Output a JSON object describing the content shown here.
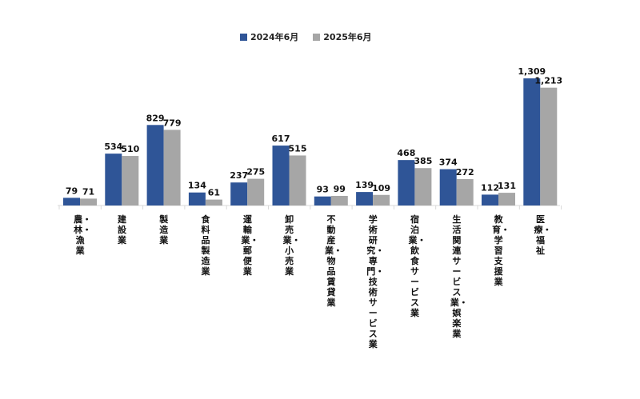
{
  "colors": {
    "series_2024": "#2F5597",
    "series_2025": "#A6A6A6",
    "axis": "#D9D9D9"
  },
  "chart_data": {
    "type": "bar",
    "title": "",
    "xlabel": "",
    "ylabel": "",
    "ylim": [
      0,
      1400
    ],
    "grid": false,
    "legend_position": "top",
    "categories": [
      "農・林・漁業",
      "建設業",
      "製造業",
      "食料品製造業",
      "運輸業・郵便業",
      "卸売業・小売業",
      "不動産業・物品賃貸業",
      "学術研究・専門・技術サービス業",
      "宿泊業・飲食サービス業",
      "生活関連サービス業・娯楽業",
      "教育・学習支援業",
      "医療・福祉"
    ],
    "series": [
      {
        "name": "2024年6月",
        "values": [
          79,
          534,
          829,
          134,
          237,
          617,
          93,
          139,
          468,
          374,
          112,
          1309
        ],
        "labels": [
          "79",
          "534",
          "829",
          "134",
          "237",
          "617",
          "93",
          "139",
          "468",
          "374",
          "112",
          "1,309"
        ]
      },
      {
        "name": "2025年6月",
        "values": [
          71,
          510,
          779,
          61,
          275,
          515,
          99,
          109,
          385,
          272,
          131,
          1213
        ],
        "labels": [
          "71",
          "510",
          "779",
          "61",
          "275",
          "515",
          "99",
          "109",
          "385",
          "272",
          "131",
          "1,213"
        ]
      }
    ]
  }
}
